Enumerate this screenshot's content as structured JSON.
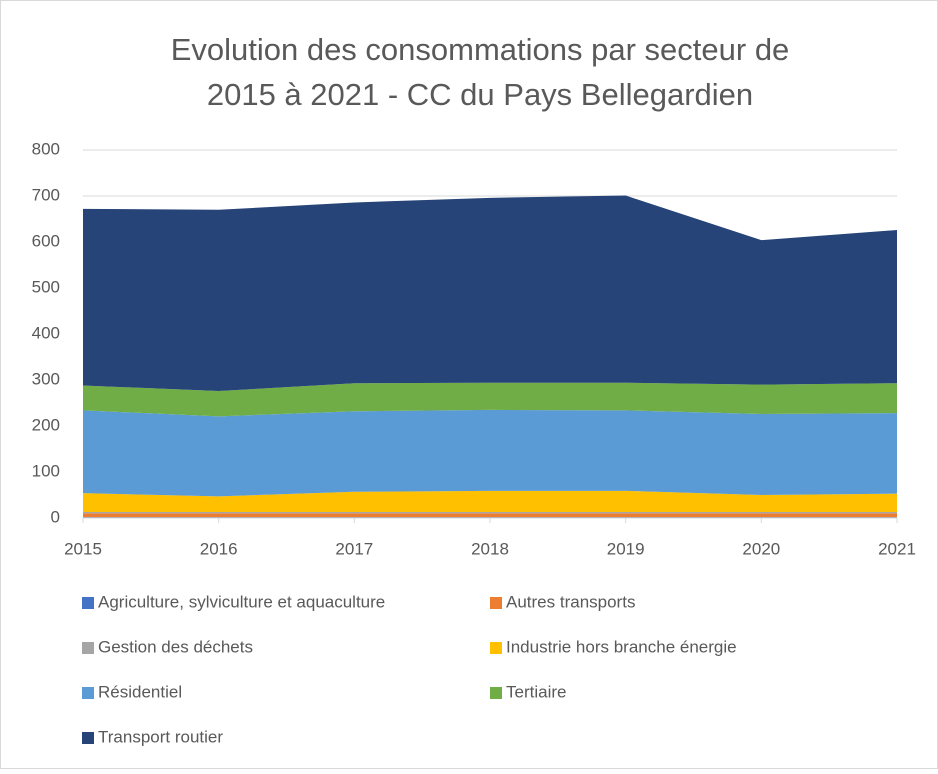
{
  "chart_data": {
    "type": "stacked_area",
    "title": [
      "Evolution des consommations par secteur de",
      "2015 à 2021 - CC du Pays Bellegardien"
    ],
    "categories": [
      "2015",
      "2016",
      "2017",
      "2018",
      "2019",
      "2020",
      "2021"
    ],
    "series": [
      {
        "name": "Agriculture, sylviculture et aquaculture",
        "color": "#4472c4",
        "values": [
          2,
          2,
          2,
          2,
          2,
          2,
          2
        ]
      },
      {
        "name": "Autres transports",
        "color": "#ed7d31",
        "values": [
          8,
          8,
          8,
          8,
          8,
          8,
          8
        ]
      },
      {
        "name": "Gestion des déchets",
        "color": "#a5a5a5",
        "values": [
          3,
          3,
          3,
          3,
          3,
          3,
          3
        ]
      },
      {
        "name": "Industrie hors branche énergie",
        "color": "#ffc000",
        "values": [
          41,
          34,
          44,
          46,
          46,
          37,
          40
        ]
      },
      {
        "name": "Résidentiel",
        "color": "#5b9bd5",
        "values": [
          180,
          174,
          175,
          176,
          175,
          176,
          175
        ]
      },
      {
        "name": "Tertiaire",
        "color": "#70ad47",
        "values": [
          54,
          55,
          61,
          59,
          60,
          64,
          65
        ]
      },
      {
        "name": "Transport routier",
        "color": "#264478",
        "values": [
          384,
          394,
          393,
          402,
          407,
          314,
          333
        ]
      }
    ],
    "ylim": [
      0,
      800
    ],
    "yticks": [
      0,
      100,
      200,
      300,
      400,
      500,
      600,
      700,
      800
    ],
    "grid": true
  }
}
